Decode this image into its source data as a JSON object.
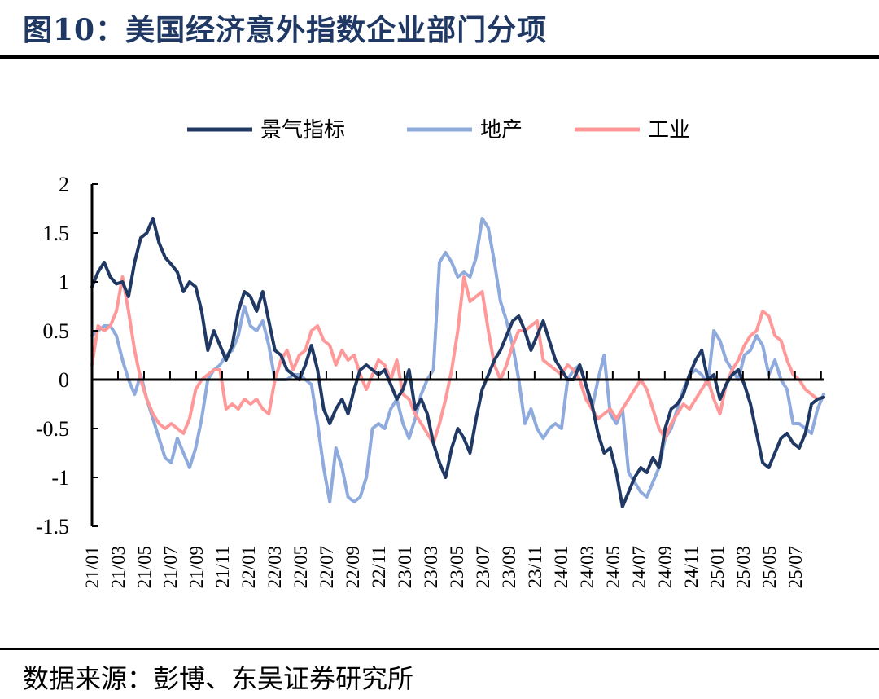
{
  "figure": {
    "title": "图10：美国经济意外指数企业部门分项",
    "source": "数据来源：彭博、东吴证券研究所"
  },
  "chart_data": {
    "type": "line",
    "title": "",
    "xlabel": "",
    "ylabel": "",
    "ylim": [
      -1.5,
      2
    ],
    "yticks": [
      "2",
      "1.5",
      "1",
      "0.5",
      "0",
      "-0.5",
      "-1",
      "-1.5"
    ],
    "ytick_values": [
      2,
      1.5,
      1,
      0.5,
      0,
      -0.5,
      -1,
      -1.5
    ],
    "xticks": [
      "21/01",
      "21/03",
      "21/05",
      "21/07",
      "21/09",
      "21/11",
      "22/01",
      "22/03",
      "22/05",
      "22/07",
      "22/09",
      "22/11",
      "23/01",
      "23/03",
      "23/05",
      "23/07",
      "23/09",
      "23/11",
      "24/01",
      "24/03",
      "24/05",
      "24/07",
      "24/09",
      "24/11",
      "25/01",
      "25/03",
      "25/05",
      "25/07"
    ],
    "x_start": "2021-01",
    "x_end": "2025-09",
    "legend": {
      "placement": "top-center"
    },
    "grid": false,
    "series": [
      {
        "name": "景气指标",
        "color": "#203864",
        "values": [
          0.95,
          1.1,
          1.2,
          1.05,
          0.98,
          1.0,
          0.85,
          1.2,
          1.45,
          1.5,
          1.65,
          1.4,
          1.25,
          1.18,
          1.1,
          0.9,
          1.0,
          0.95,
          0.7,
          0.3,
          0.5,
          0.35,
          0.2,
          0.35,
          0.7,
          0.9,
          0.85,
          0.7,
          0.9,
          0.6,
          0.3,
          0.25,
          0.1,
          0.05,
          0.0,
          0.15,
          0.35,
          0.1,
          -0.3,
          -0.45,
          -0.3,
          -0.2,
          -0.35,
          -0.1,
          0.1,
          0.15,
          0.1,
          0.05,
          0.1,
          -0.05,
          -0.2,
          -0.1,
          0.1,
          -0.3,
          -0.2,
          -0.35,
          -0.65,
          -0.85,
          -1.0,
          -0.7,
          -0.5,
          -0.6,
          -0.75,
          -0.4,
          -0.1,
          0.05,
          0.2,
          0.3,
          0.45,
          0.6,
          0.65,
          0.5,
          0.3,
          0.45,
          0.6,
          0.4,
          0.2,
          0.1,
          0.0,
          0.0,
          0.15,
          -0.05,
          -0.25,
          -0.55,
          -0.75,
          -0.7,
          -0.95,
          -1.3,
          -1.15,
          -1.0,
          -0.9,
          -0.95,
          -0.8,
          -0.9,
          -0.5,
          -0.3,
          -0.25,
          -0.15,
          0.05,
          0.2,
          0.3,
          0.0,
          0.05,
          -0.2,
          -0.05,
          0.05,
          0.1,
          -0.05,
          -0.25,
          -0.55,
          -0.85,
          -0.9,
          -0.75,
          -0.6,
          -0.55,
          -0.65,
          -0.7,
          -0.55,
          -0.25,
          -0.2,
          -0.18
        ]
      },
      {
        "name": "地产",
        "color": "#8faadc",
        "values": [
          0.45,
          0.5,
          0.55,
          0.55,
          0.45,
          0.2,
          0.0,
          -0.15,
          0.05,
          -0.2,
          -0.4,
          -0.6,
          -0.8,
          -0.85,
          -0.6,
          -0.75,
          -0.9,
          -0.7,
          -0.4,
          0.0,
          0.1,
          0.15,
          0.25,
          0.3,
          0.45,
          0.75,
          0.55,
          0.5,
          0.6,
          0.35,
          0.0,
          0.0,
          0.0,
          0.05,
          0.05,
          0.0,
          -0.05,
          -0.45,
          -0.9,
          -1.25,
          -0.7,
          -0.9,
          -1.2,
          -1.25,
          -1.2,
          -1.0,
          -0.5,
          -0.45,
          -0.5,
          -0.3,
          -0.2,
          -0.45,
          -0.6,
          -0.4,
          -0.15,
          0.0,
          0.1,
          1.2,
          1.3,
          1.2,
          1.05,
          1.1,
          1.05,
          1.25,
          1.65,
          1.55,
          1.2,
          0.8,
          0.6,
          0.35,
          0.0,
          -0.45,
          -0.3,
          -0.5,
          -0.6,
          -0.5,
          -0.45,
          -0.5,
          0.0,
          0.1,
          0.15,
          -0.05,
          -0.3,
          0.0,
          0.25,
          -0.35,
          -0.45,
          -0.3,
          -0.95,
          -1.05,
          -1.15,
          -1.2,
          -1.05,
          -0.9,
          -0.6,
          -0.5,
          -0.3,
          -0.1,
          0.05,
          0.1,
          0.05,
          -0.05,
          0.5,
          0.4,
          0.2,
          0.1,
          0.0,
          0.25,
          0.3,
          0.45,
          0.35,
          0.05,
          0.2,
          0.0,
          -0.1,
          -0.45,
          -0.45,
          -0.5,
          -0.55,
          -0.3,
          -0.15
        ]
      },
      {
        "name": "工业",
        "color": "#ff9999",
        "values": [
          0.15,
          0.55,
          0.5,
          0.55,
          0.7,
          1.05,
          0.7,
          0.3,
          0.0,
          -0.2,
          -0.35,
          -0.45,
          -0.5,
          -0.45,
          -0.5,
          -0.55,
          -0.4,
          -0.1,
          0.0,
          0.05,
          0.1,
          0.1,
          -0.3,
          -0.25,
          -0.3,
          -0.2,
          -0.25,
          -0.2,
          -0.3,
          -0.35,
          0.0,
          0.2,
          0.3,
          0.1,
          0.25,
          0.3,
          0.5,
          0.55,
          0.4,
          0.35,
          0.15,
          0.3,
          0.2,
          0.25,
          0.05,
          -0.1,
          0.05,
          0.2,
          0.15,
          0.0,
          0.2,
          -0.15,
          -0.2,
          -0.35,
          -0.45,
          -0.55,
          -0.65,
          -0.45,
          -0.2,
          0.1,
          0.5,
          1.05,
          0.8,
          0.85,
          0.9,
          0.5,
          0.15,
          0.0,
          0.15,
          0.35,
          0.5,
          0.5,
          0.55,
          0.6,
          0.2,
          0.15,
          0.1,
          0.05,
          0.15,
          0.1,
          0.0,
          -0.2,
          -0.3,
          -0.4,
          -0.35,
          -0.3,
          -0.4,
          -0.3,
          -0.2,
          -0.1,
          0.0,
          -0.1,
          -0.3,
          -0.5,
          -0.6,
          -0.45,
          -0.35,
          -0.25,
          -0.3,
          -0.2,
          -0.1,
          0.0,
          -0.2,
          -0.35,
          -0.05,
          0.1,
          0.2,
          0.35,
          0.45,
          0.5,
          0.7,
          0.65,
          0.45,
          0.4,
          0.2,
          0.05,
          0.0,
          -0.1,
          -0.15,
          -0.2,
          -0.18
        ]
      }
    ]
  }
}
